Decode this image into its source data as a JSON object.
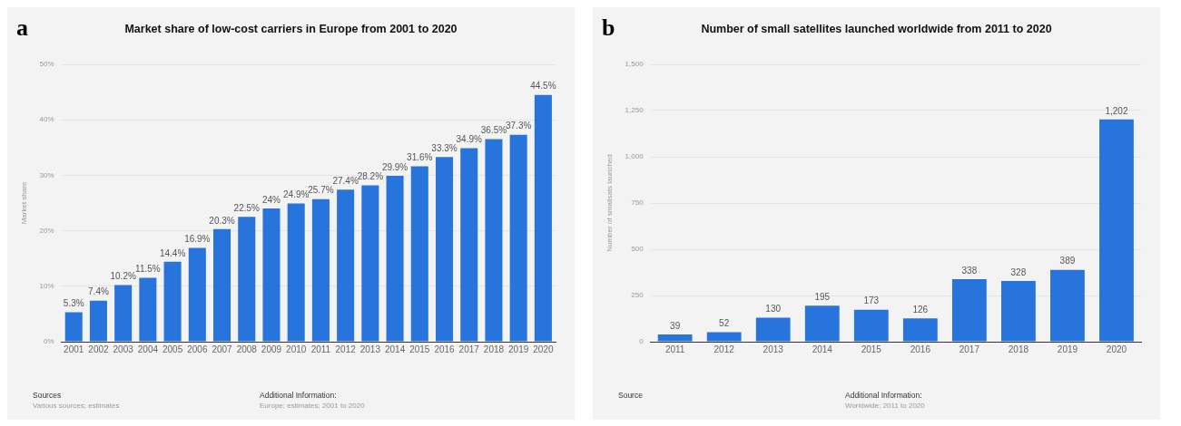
{
  "chart_data": [
    {
      "type": "bar",
      "title": "Market share of low-cost carriers in Europe from 2001 to 2020",
      "ylabel": "Market share",
      "categories": [
        "2001",
        "2002",
        "2003",
        "2004",
        "2005",
        "2006",
        "2007",
        "2008",
        "2009",
        "2010",
        "2011",
        "2012",
        "2013",
        "2014",
        "2015",
        "2016",
        "2017",
        "2018",
        "2019",
        "2020"
      ],
      "values": [
        5.3,
        7.4,
        10.2,
        11.5,
        14.4,
        16.9,
        20.3,
        22.5,
        24,
        24.9,
        25.7,
        27.4,
        28.2,
        29.9,
        31.6,
        33.3,
        34.9,
        36.5,
        37.3,
        44.5
      ],
      "value_labels": [
        "5.3%",
        "7.4%",
        "10.2%",
        "11.5%",
        "14.4%",
        "16.9%",
        "20.3%",
        "22.5%",
        "24%",
        "24.9%",
        "25.7%",
        "27.4%",
        "28.2%",
        "29.9%",
        "31.6%",
        "33.3%",
        "34.9%",
        "36.5%",
        "37.3%",
        "44.5%"
      ],
      "color": "#2775dc",
      "ylim": [
        0,
        50
      ],
      "yticks": [
        {
          "value": 0,
          "label": "0%"
        },
        {
          "value": 10,
          "label": "10%"
        },
        {
          "value": 20,
          "label": "20%"
        },
        {
          "value": 30,
          "label": "30%"
        },
        {
          "value": 40,
          "label": "40%"
        },
        {
          "value": 50,
          "label": "50%"
        }
      ],
      "grid": "y",
      "legend": false,
      "annotations": [
        "a",
        "Sources",
        "Various sources; estimates",
        "Additional Information:",
        "Europe; estimates; 2001 to 2020"
      ]
    },
    {
      "type": "bar",
      "title": "Number of small satellites launched worldwide from 2011 to 2020",
      "ylabel": "Number of smallsats launched",
      "categories": [
        "2011",
        "2012",
        "2013",
        "2014",
        "2015",
        "2016",
        "2017",
        "2018",
        "2019",
        "2020"
      ],
      "values": [
        39,
        52,
        130,
        195,
        173,
        126,
        338,
        328,
        389,
        1202
      ],
      "value_labels": [
        "39",
        "52",
        "130",
        "195",
        "173",
        "126",
        "338",
        "328",
        "389",
        "1,202"
      ],
      "color": "#2775dc",
      "ylim": [
        0,
        1500
      ],
      "yticks": [
        0,
        250,
        500,
        750,
        {
          "value": 1000,
          "label": "1,000"
        },
        {
          "value": 1250,
          "label": "1,250"
        },
        {
          "value": 1500,
          "label": "1,500"
        }
      ],
      "grid": "y",
      "legend": false,
      "annotations": [
        "b",
        "Source",
        "Additional Information:",
        "Worldwide; 2011 to 2020"
      ]
    }
  ]
}
